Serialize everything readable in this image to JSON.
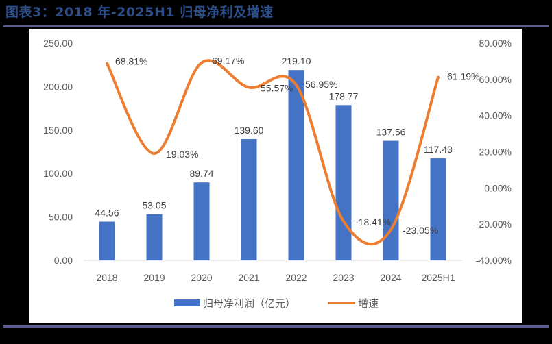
{
  "title": "图表3：2018 年-2025H1 归母净利及增速",
  "colors": {
    "bar": "#4472c4",
    "line": "#ed7d31",
    "title": "#2c4f8c",
    "rule": "#5a5a96",
    "axis_text": "#595959",
    "label_text": "#404040",
    "baseline": "#d9d9d9"
  },
  "legend": {
    "bar_label": "归母净利润（亿元）",
    "line_label": "增速"
  },
  "chart_data": {
    "type": "bar+line",
    "title": "图表3：2018 年-2025H1 归母净利及增速",
    "categories": [
      "2018",
      "2019",
      "2020",
      "2021",
      "2022",
      "2023",
      "2024",
      "2025H1"
    ],
    "series": [
      {
        "name": "归母净利润（亿元）",
        "type": "bar",
        "axis": "left",
        "values": [
          44.56,
          53.05,
          89.74,
          139.6,
          219.1,
          178.77,
          137.56,
          117.43
        ],
        "labels": [
          "44.56",
          "53.05",
          "89.74",
          "139.60",
          "219.10",
          "178.77",
          "137.56",
          "117.43"
        ]
      },
      {
        "name": "增速",
        "type": "line",
        "smooth": true,
        "axis": "right",
        "values": [
          68.81,
          19.03,
          69.17,
          55.57,
          56.95,
          -18.41,
          -23.05,
          61.19
        ],
        "labels": [
          "68.81%",
          "19.03%",
          "69.17%",
          "55.57%",
          "56.95%",
          "-18.41%",
          "-23.05%",
          "61.19%"
        ]
      }
    ],
    "left_axis": {
      "ylim": [
        0,
        250
      ],
      "ticks": [
        "0.00",
        "50.00",
        "100.00",
        "150.00",
        "200.00",
        "250.00"
      ]
    },
    "right_axis": {
      "ylim": [
        -40,
        80
      ],
      "ticks": [
        "-40.00%",
        "-20.00%",
        "0.00%",
        "20.00%",
        "40.00%",
        "60.00%",
        "80.00%"
      ]
    },
    "grid": false,
    "legend_position": "bottom",
    "xlabel": "",
    "ylabel": ""
  }
}
